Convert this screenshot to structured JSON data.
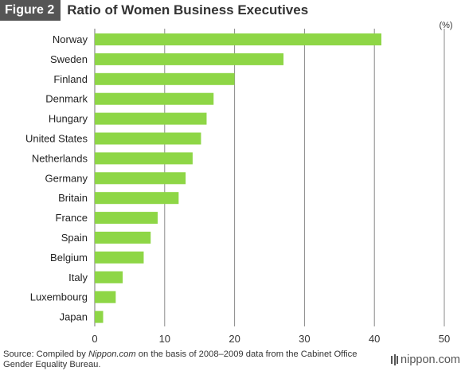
{
  "header": {
    "figure_label": "Figure 2",
    "title": "Ratio of Women Business Executives"
  },
  "chart_data": {
    "type": "bar",
    "orientation": "horizontal",
    "title": "Ratio of Women Business Executives",
    "unit_label": "(%)",
    "categories": [
      "Norway",
      "Sweden",
      "Finland",
      "Denmark",
      "Hungary",
      "United States",
      "Netherlands",
      "Germany",
      "Britain",
      "France",
      "Spain",
      "Belgium",
      "Italy",
      "Luxembourg",
      "Japan"
    ],
    "values": [
      41,
      27,
      20,
      17,
      16,
      15.2,
      14,
      13,
      12,
      9,
      8,
      7,
      4,
      3,
      1.2
    ],
    "xlim": [
      0,
      50
    ],
    "xticks": [
      0,
      10,
      20,
      30,
      40,
      50
    ],
    "grid": true,
    "bar_color": "#8ed646",
    "grid_color": "#888888"
  },
  "source": {
    "prefix": "Source: Compiled by ",
    "publisher": "Nippon.com",
    "suffix": " on the basis of 2008–2009 data from the Cabinet Office Gender Equality Bureau."
  },
  "logo": {
    "text": "nippon.com",
    "icon": "nippon-logo-icon"
  }
}
